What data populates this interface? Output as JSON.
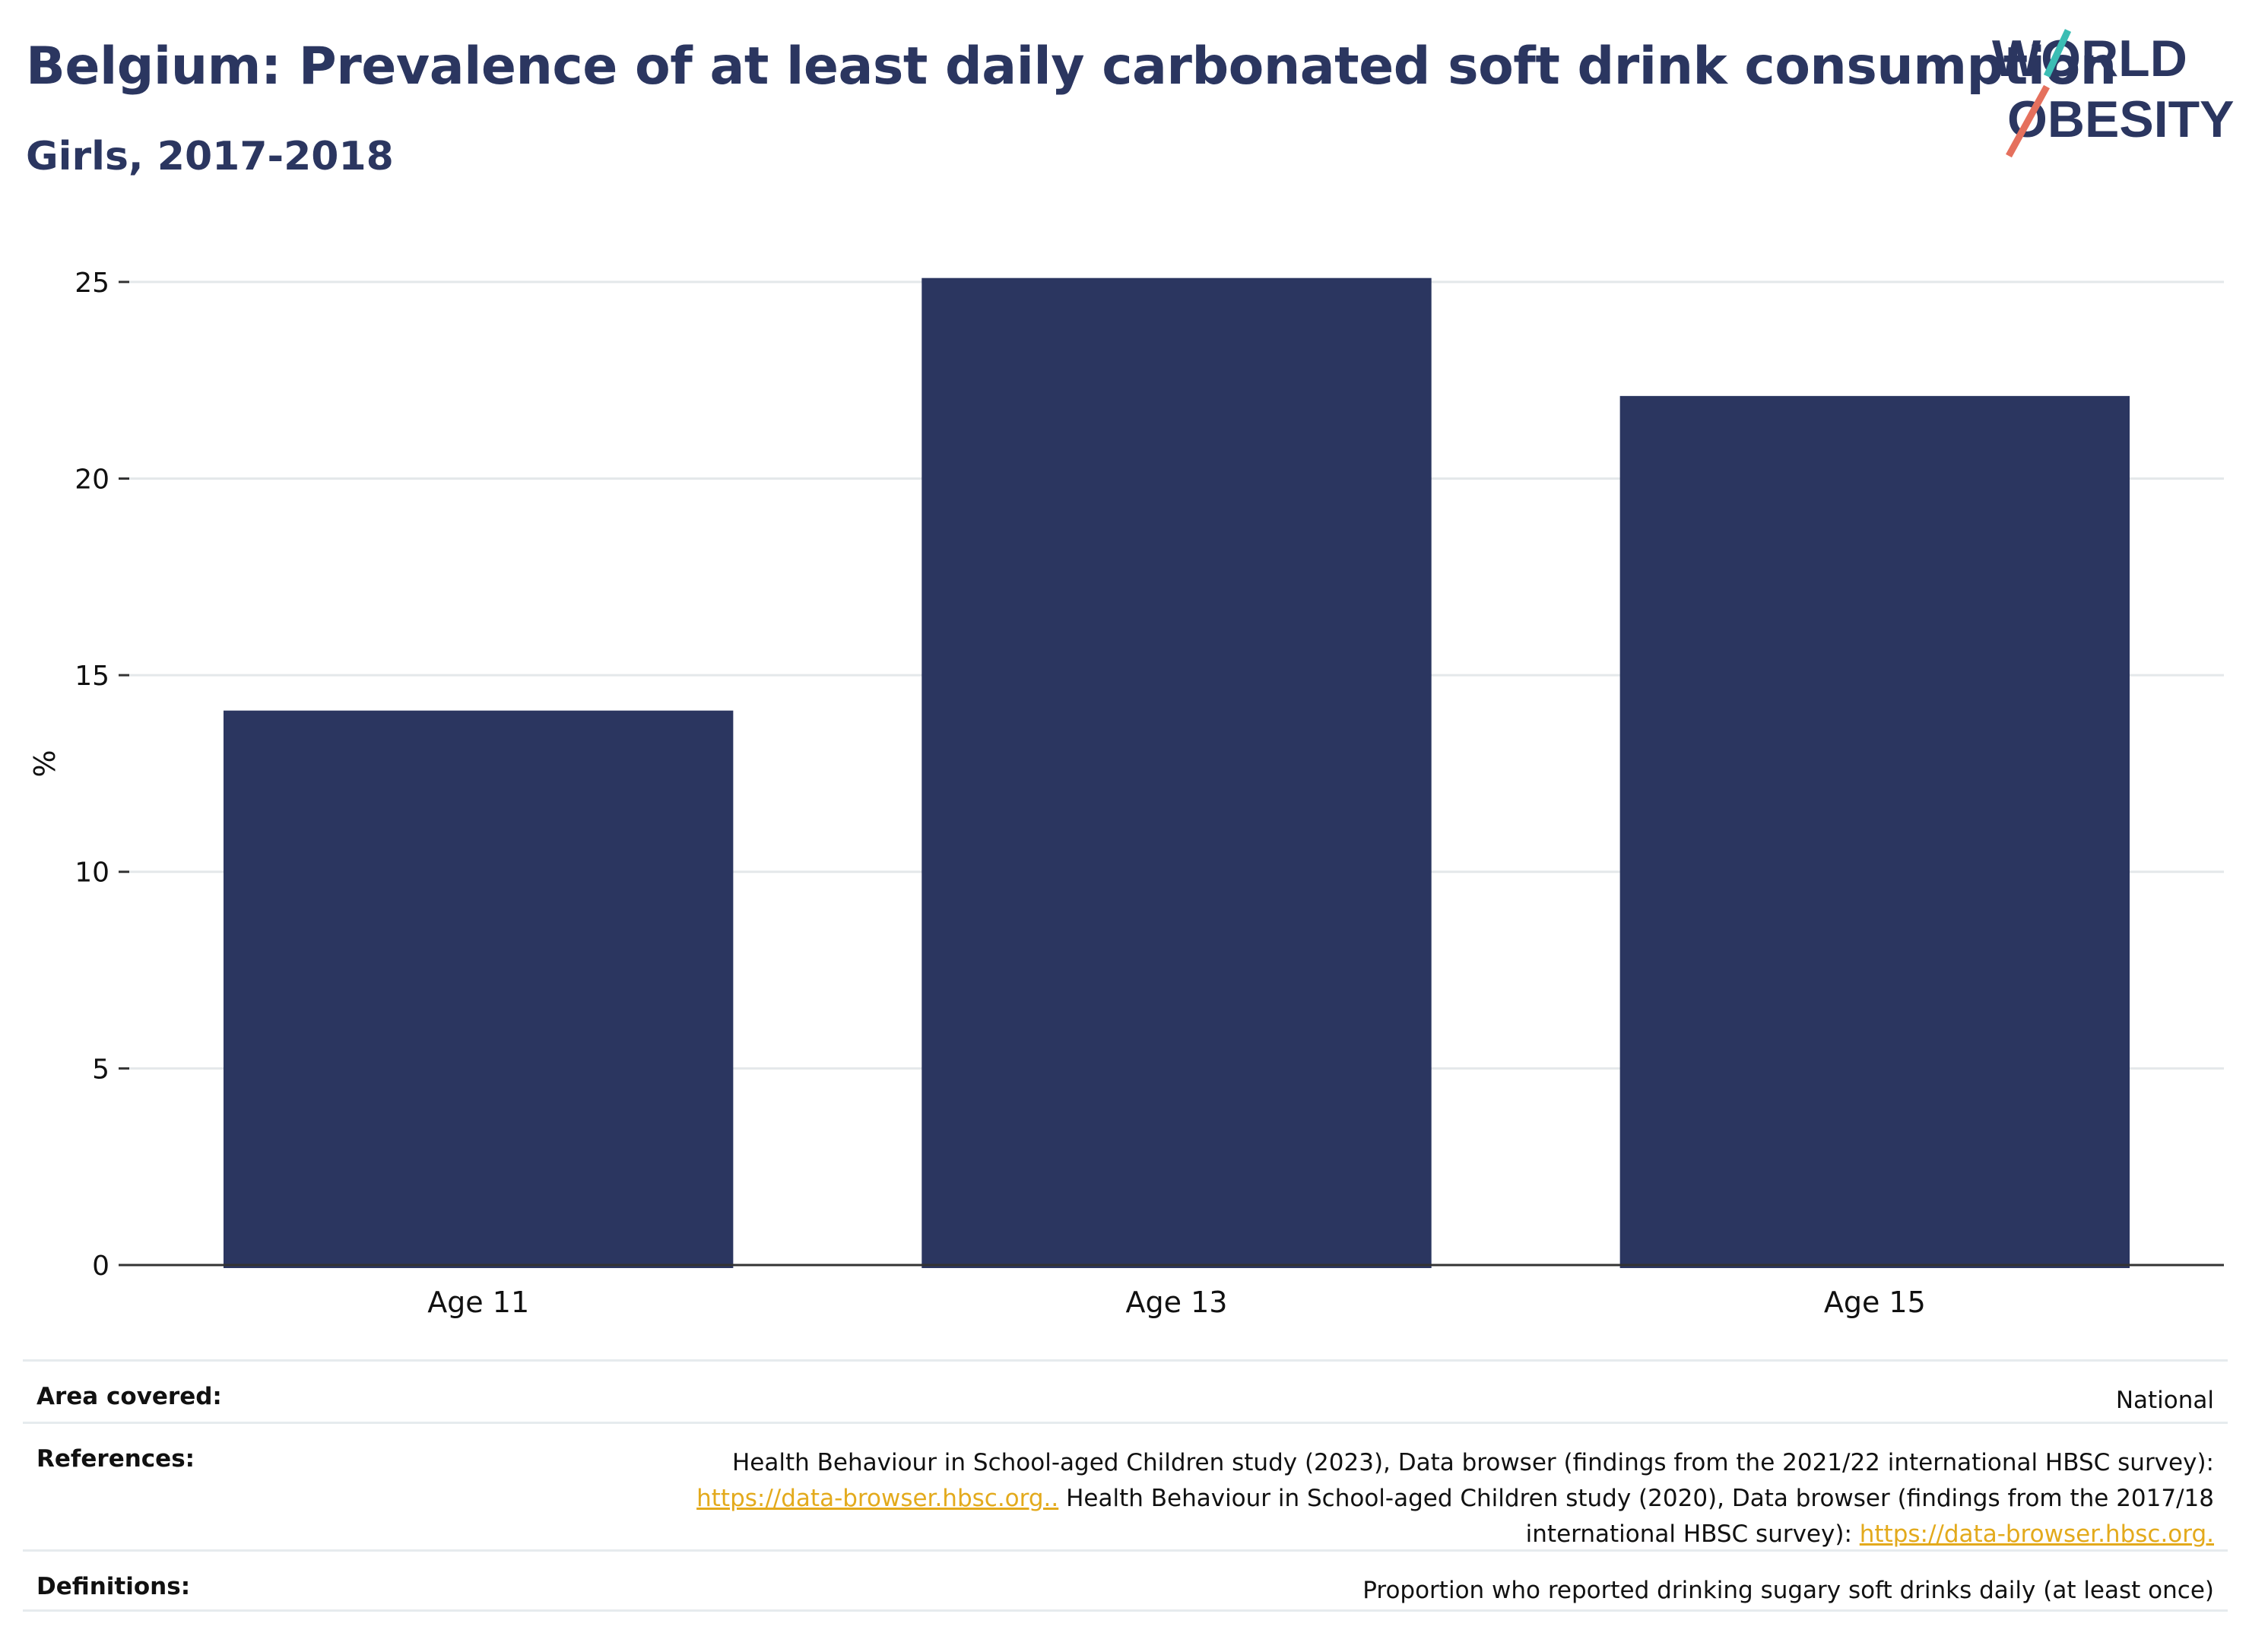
{
  "header": {
    "title": "Belgium: Prevalence of at least daily carbonated soft drink consumption",
    "subtitle": "Girls, 2017-2018"
  },
  "logo": {
    "line1": "WORLD",
    "line2": "OBESITY",
    "text_color": "#2b3660",
    "slash_color_top": "#3bbdb4",
    "slash_color_bottom": "#e5705d"
  },
  "chart_data": {
    "type": "bar",
    "categories": [
      "Age 11",
      "Age 13",
      "Age 15"
    ],
    "values": [
      14.1,
      25.1,
      22.1
    ],
    "ylabel": "%",
    "xlabel": "",
    "ylim": [
      0,
      25.5
    ],
    "yticks": [
      0,
      5,
      10,
      15,
      20,
      25
    ],
    "grid": true,
    "bar_color": "#2b3660"
  },
  "info": {
    "area": {
      "label": "Area covered:",
      "value": "National"
    },
    "references": {
      "label": "References:",
      "line1": "Health Behaviour in School-aged Children study (2023), Data browser (findings from the 2021/22 international HBSC survey):",
      "link1": "https://data-browser.hbsc.org..",
      "line2_after_link": " Health Behaviour in School-aged Children study (2020), Data browser (findings from the 2017/18",
      "line3_before_link": "international HBSC survey): ",
      "link2": "https://data-browser.hbsc.org."
    },
    "definitions": {
      "label": "Definitions:",
      "value": "Proportion who reported drinking sugary soft drinks daily (at least once)"
    }
  }
}
